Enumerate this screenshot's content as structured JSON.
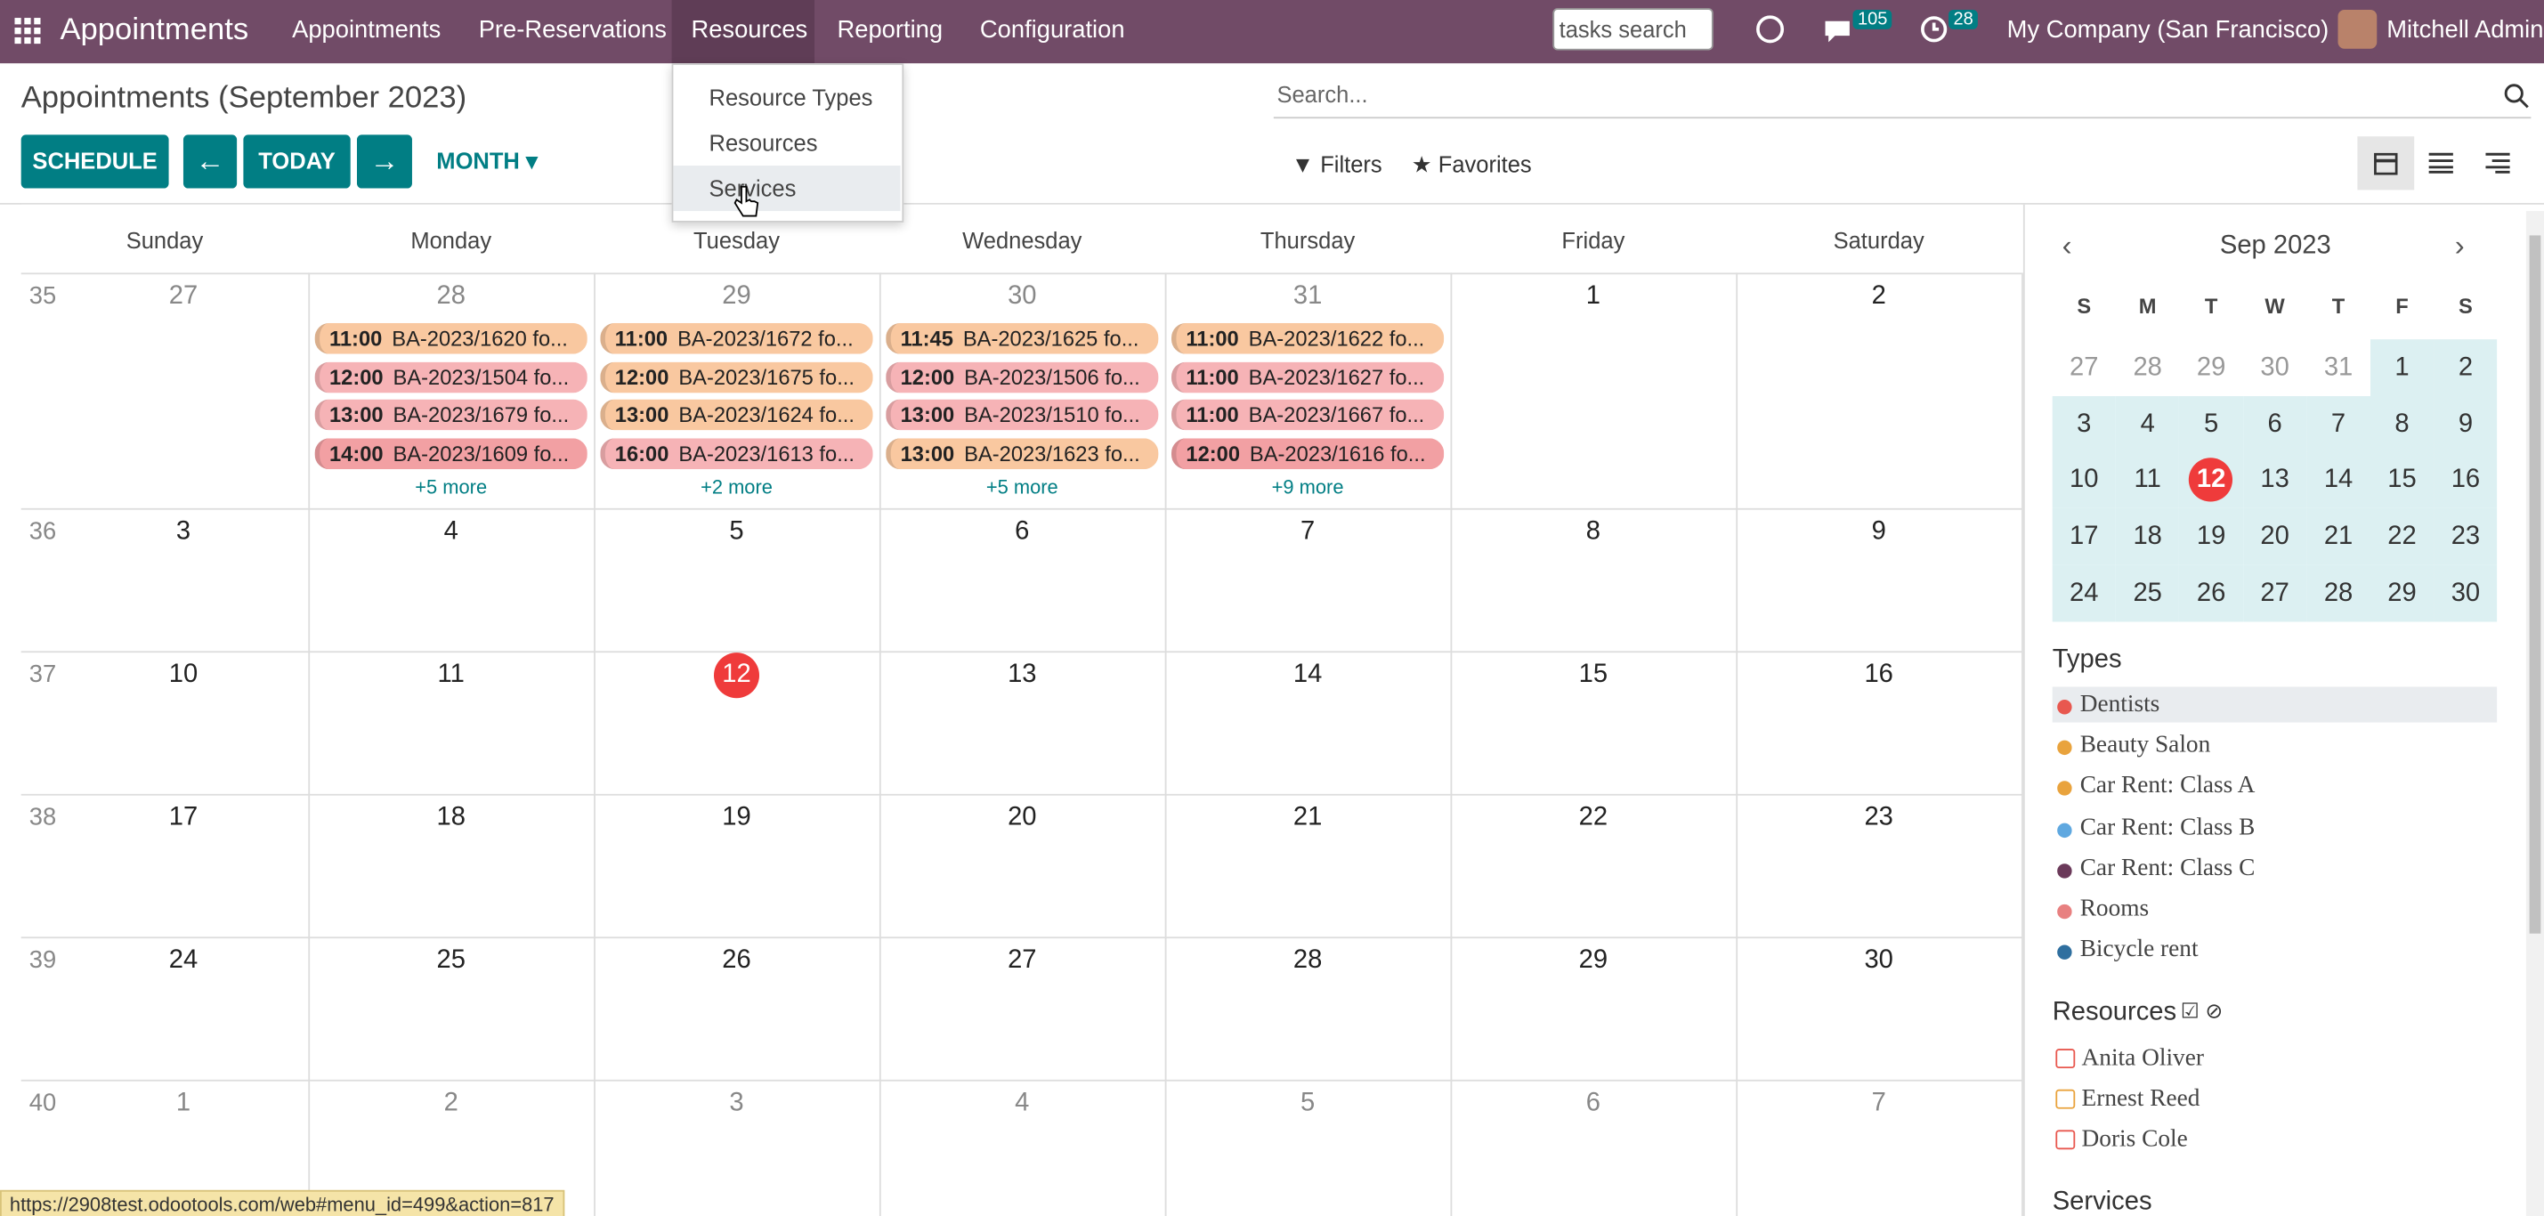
{
  "navbar": {
    "app": "Appointments",
    "menu": [
      "Appointments",
      "Pre-Reservations",
      "Resources",
      "Reporting",
      "Configuration"
    ],
    "search_placeholder": "tasks search",
    "messages_badge": "105",
    "activities_badge": "28",
    "company": "My Company (San Francisco)",
    "user": "Mitchell Admin"
  },
  "dropdown": [
    "Resource Types",
    "Resources",
    "Services"
  ],
  "control": {
    "title": "Appointments (September 2023)",
    "schedule": "SCHEDULE",
    "today": "TODAY",
    "scale": "MONTH",
    "search_placeholder": "Search...",
    "filters": "Filters",
    "favorites": "Favorites"
  },
  "calendar": {
    "weekdays": [
      "Sunday",
      "Monday",
      "Tuesday",
      "Wednesday",
      "Thursday",
      "Friday",
      "Saturday"
    ],
    "weeks": [
      {
        "number": "35",
        "days": [
          "27",
          "28",
          "29",
          "30",
          "31",
          "1",
          "2"
        ],
        "events": [
          {
            "items": [
              {
                "time": "11:00",
                "label": "BA-2023/1620 fo...",
                "color": "#f9c8a0"
              },
              {
                "time": "12:00",
                "label": "BA-2023/1504 fo...",
                "color": "#f6b3b6"
              },
              {
                "time": "13:00",
                "label": "BA-2023/1679 fo...",
                "color": "#f6b3b6"
              },
              {
                "time": "14:00",
                "label": "BA-2023/1609 fo...",
                "color": "#f2a0a3"
              }
            ],
            "more": "+5 more"
          },
          {
            "items": [
              {
                "time": "11:00",
                "label": "BA-2023/1672 fo...",
                "color": "#f9c8a0"
              },
              {
                "time": "12:00",
                "label": "BA-2023/1675 fo...",
                "color": "#f9c8a0"
              },
              {
                "time": "13:00",
                "label": "BA-2023/1624 fo...",
                "color": "#f9c8a0"
              },
              {
                "time": "16:00",
                "label": "BA-2023/1613 fo...",
                "color": "#f6b3b6"
              }
            ],
            "more": "+2 more"
          },
          {
            "items": [
              {
                "time": "11:45",
                "label": "BA-2023/1625 fo...",
                "color": "#f9c8a0"
              },
              {
                "time": "12:00",
                "label": "BA-2023/1506 fo...",
                "color": "#f6b3b6"
              },
              {
                "time": "13:00",
                "label": "BA-2023/1510 fo...",
                "color": "#f6b3b6"
              },
              {
                "time": "13:00",
                "label": "BA-2023/1623 fo...",
                "color": "#f9c8a0"
              }
            ],
            "more": "+5 more"
          },
          {
            "items": [
              {
                "time": "11:00",
                "label": "BA-2023/1622 fo...",
                "color": "#f9c8a0"
              },
              {
                "time": "11:00",
                "label": "BA-2023/1627 fo...",
                "color": "#f6b3b6"
              },
              {
                "time": "11:00",
                "label": "BA-2023/1667 fo...",
                "color": "#f6b3b6"
              },
              {
                "time": "12:00",
                "label": "BA-2023/1616 fo...",
                "color": "#f2a0a3"
              }
            ],
            "more": "+9 more"
          }
        ]
      },
      {
        "number": "36",
        "days": [
          "3",
          "4",
          "5",
          "6",
          "7",
          "8",
          "9"
        ]
      },
      {
        "number": "37",
        "days": [
          "10",
          "11",
          "12",
          "13",
          "14",
          "15",
          "16"
        ]
      },
      {
        "number": "38",
        "days": [
          "17",
          "18",
          "19",
          "20",
          "21",
          "22",
          "23"
        ]
      },
      {
        "number": "39",
        "days": [
          "24",
          "25",
          "26",
          "27",
          "28",
          "29",
          "30"
        ]
      },
      {
        "number": "40",
        "days": [
          "1",
          "2",
          "3",
          "4",
          "5",
          "6",
          "7"
        ]
      }
    ]
  },
  "sidebar": {
    "month": "Sep 2023",
    "weekdays": [
      "S",
      "M",
      "T",
      "W",
      "T",
      "F",
      "S"
    ],
    "rows": [
      [
        "27",
        "28",
        "29",
        "30",
        "31",
        "1",
        "2"
      ],
      [
        "3",
        "4",
        "5",
        "6",
        "7",
        "8",
        "9"
      ],
      [
        "10",
        "11",
        "12",
        "13",
        "14",
        "15",
        "16"
      ],
      [
        "17",
        "18",
        "19",
        "20",
        "21",
        "22",
        "23"
      ],
      [
        "24",
        "25",
        "26",
        "27",
        "28",
        "29",
        "30"
      ]
    ],
    "types_title": "Types",
    "types": [
      {
        "name": "Dentists",
        "color": "#e8584f"
      },
      {
        "name": "Beauty Salon",
        "color": "#e9a33d"
      },
      {
        "name": "Car Rent: Class A",
        "color": "#e9a33d"
      },
      {
        "name": "Car Rent: Class B",
        "color": "#5fa8e0"
      },
      {
        "name": "Car Rent: Class C",
        "color": "#6b3a5a"
      },
      {
        "name": "Rooms",
        "color": "#e88080"
      },
      {
        "name": "Bicycle rent",
        "color": "#2f6f9f"
      }
    ],
    "resources_title": "Resources",
    "resources": [
      {
        "name": "Anita Oliver",
        "color": "#e8584f"
      },
      {
        "name": "Ernest Reed",
        "color": "#e9a33d"
      },
      {
        "name": "Doris Cole",
        "color": "#e8584f"
      }
    ],
    "services_title": "Services"
  },
  "status_url": "https://2908test.odootools.com/web#menu_id=499&action=817"
}
